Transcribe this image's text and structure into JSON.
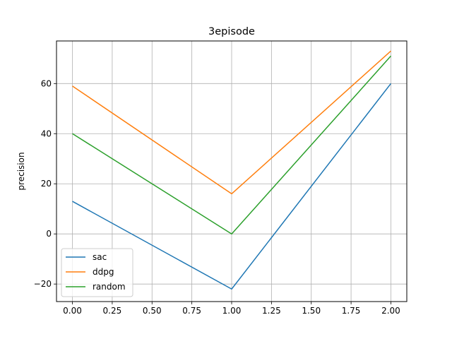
{
  "chart_data": {
    "type": "line",
    "title": "3episode",
    "xlabel": "",
    "ylabel": "precision",
    "x": [
      0.0,
      1.0,
      2.0
    ],
    "xlim": [
      -0.1,
      2.1
    ],
    "ylim": [
      -27,
      77
    ],
    "xticks": [
      "0.00",
      "0.25",
      "0.50",
      "0.75",
      "1.00",
      "1.25",
      "1.50",
      "1.75",
      "2.00"
    ],
    "yticks": [
      "−20",
      "0",
      "20",
      "40",
      "60"
    ],
    "grid": true,
    "legend_position": "lower-left",
    "series": [
      {
        "name": "sac",
        "values": [
          13,
          -22,
          60
        ],
        "color": "#1f77b4"
      },
      {
        "name": "ddpg",
        "values": [
          59,
          16,
          73
        ],
        "color": "#ff7f0e"
      },
      {
        "name": "random",
        "values": [
          40,
          0,
          71
        ],
        "color": "#2ca02c"
      }
    ]
  }
}
